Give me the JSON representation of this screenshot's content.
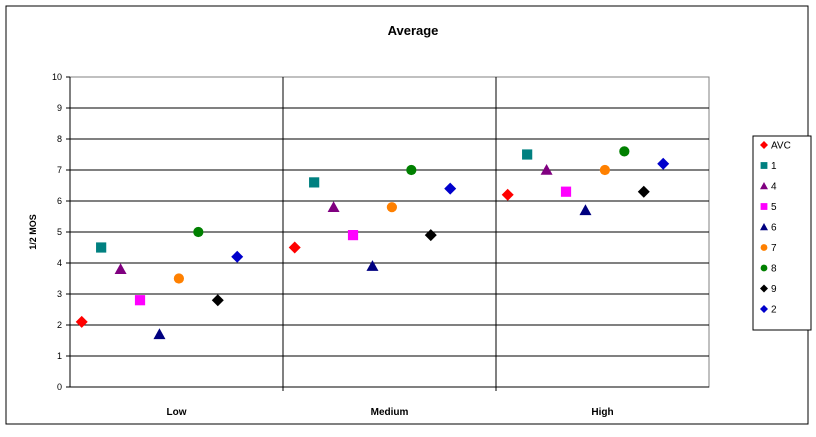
{
  "chart_data": {
    "type": "scatter",
    "title": "Average",
    "xlabel": "",
    "ylabel": "1/2 MOS",
    "ylim": [
      0,
      10
    ],
    "y_ticks": [
      "0",
      "1",
      "2",
      "3",
      "4",
      "5",
      "6",
      "7",
      "8",
      "9",
      "10"
    ],
    "categories": [
      "Low",
      "Medium",
      "High"
    ],
    "grid": true,
    "legend_position": "right",
    "series": [
      {
        "name": "AVC",
        "marker": "diamond",
        "color": "#ff0000",
        "values": [
          2.1,
          4.5,
          6.2
        ]
      },
      {
        "name": "1",
        "marker": "square",
        "color": "#008080",
        "values": [
          4.5,
          6.6,
          7.5
        ]
      },
      {
        "name": "4",
        "marker": "triangle",
        "color": "#800080",
        "values": [
          3.8,
          5.8,
          7.0
        ]
      },
      {
        "name": "5",
        "marker": "square",
        "color": "#ff00ff",
        "values": [
          2.8,
          4.9,
          6.3
        ]
      },
      {
        "name": "6",
        "marker": "triangle",
        "color": "#000080",
        "values": [
          1.7,
          3.9,
          5.7
        ]
      },
      {
        "name": "7",
        "marker": "circle",
        "color": "#ff8000",
        "values": [
          3.5,
          5.8,
          7.0
        ]
      },
      {
        "name": "8",
        "marker": "circle",
        "color": "#008000",
        "values": [
          5.0,
          7.0,
          7.6
        ]
      },
      {
        "name": "9",
        "marker": "diamond",
        "color": "#000000",
        "values": [
          2.8,
          4.9,
          6.3
        ]
      },
      {
        "name": "2",
        "marker": "diamond",
        "color": "#0000cc",
        "values": [
          4.2,
          6.4,
          7.2
        ]
      }
    ]
  }
}
